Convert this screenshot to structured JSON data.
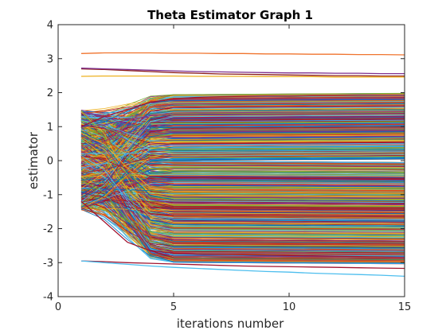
{
  "chart_data": {
    "type": "line",
    "title": "Theta Estimator Graph 1",
    "xlabel": "iterations number",
    "ylabel": "estimator",
    "xlim": [
      0,
      15
    ],
    "ylim": [
      -4,
      4
    ],
    "xticks": [
      0,
      5,
      10,
      15
    ],
    "yticks": [
      -4,
      -3,
      -2,
      -1,
      0,
      1,
      2,
      3,
      4
    ],
    "grid": false,
    "legend": "none",
    "series_count": 1000,
    "x": [
      1,
      2,
      3,
      4,
      5,
      6,
      7,
      8,
      9,
      10,
      11,
      12,
      13,
      14,
      15
    ],
    "value_range_at_x1": [
      -1.45,
      1.5
    ],
    "value_range_at_x15": [
      -3.0,
      1.95
    ],
    "series": [
      {
        "values": [
          3.15,
          3.17,
          3.17,
          3.17,
          3.16,
          3.16,
          3.15,
          3.15,
          3.14,
          3.14,
          3.13,
          3.13,
          3.12,
          3.12,
          3.11
        ],
        "color": "#f0742e"
      },
      {
        "values": [
          2.7,
          2.68,
          2.65,
          2.62,
          2.59,
          2.57,
          2.55,
          2.54,
          2.53,
          2.52,
          2.51,
          2.5,
          2.5,
          2.49,
          2.49
        ],
        "color": "#8c1d1d"
      },
      {
        "values": [
          2.72,
          2.7,
          2.68,
          2.66,
          2.64,
          2.62,
          2.61,
          2.6,
          2.59,
          2.58,
          2.58,
          2.57,
          2.57,
          2.56,
          2.56
        ],
        "color": "#7e2f8e"
      },
      {
        "values": [
          2.48,
          2.49,
          2.49,
          2.49,
          2.49,
          2.48,
          2.48,
          2.48,
          2.47,
          2.47,
          2.47,
          2.46,
          2.46,
          2.46,
          2.46
        ],
        "color": "#edb120"
      },
      {
        "values": [
          -2.95,
          -2.97,
          -3.0,
          -3.02,
          -3.04,
          -3.06,
          -3.08,
          -3.1,
          -3.11,
          -3.12,
          -3.13,
          -3.14,
          -3.15,
          -3.16,
          -3.17
        ],
        "color": "#a2142f"
      },
      {
        "values": [
          -2.95,
          -3.0,
          -3.05,
          -3.1,
          -3.14,
          -3.17,
          -3.2,
          -3.23,
          -3.26,
          -3.28,
          -3.31,
          -3.33,
          -3.35,
          -3.37,
          -3.4
        ],
        "color": "#4dbeee"
      },
      {
        "values": [
          -1.2,
          -1.8,
          -2.4,
          -2.65,
          -2.72,
          -2.75,
          -2.76,
          -2.77,
          -2.78,
          -2.79,
          -2.8,
          -2.81,
          -2.82,
          -2.83,
          -2.85
        ],
        "color": "#a2142f"
      },
      {
        "values": [
          1.0,
          1.3,
          1.5,
          1.72,
          1.82,
          1.86,
          1.88,
          1.89,
          1.9,
          1.9,
          1.91,
          1.91,
          1.92,
          1.92,
          1.92
        ],
        "color": "#a2142f"
      }
    ],
    "band_colors": [
      "#0072bd",
      "#d95319",
      "#edb120",
      "#7e2f8e",
      "#77ac30",
      "#4dbeee",
      "#a2142f"
    ]
  }
}
